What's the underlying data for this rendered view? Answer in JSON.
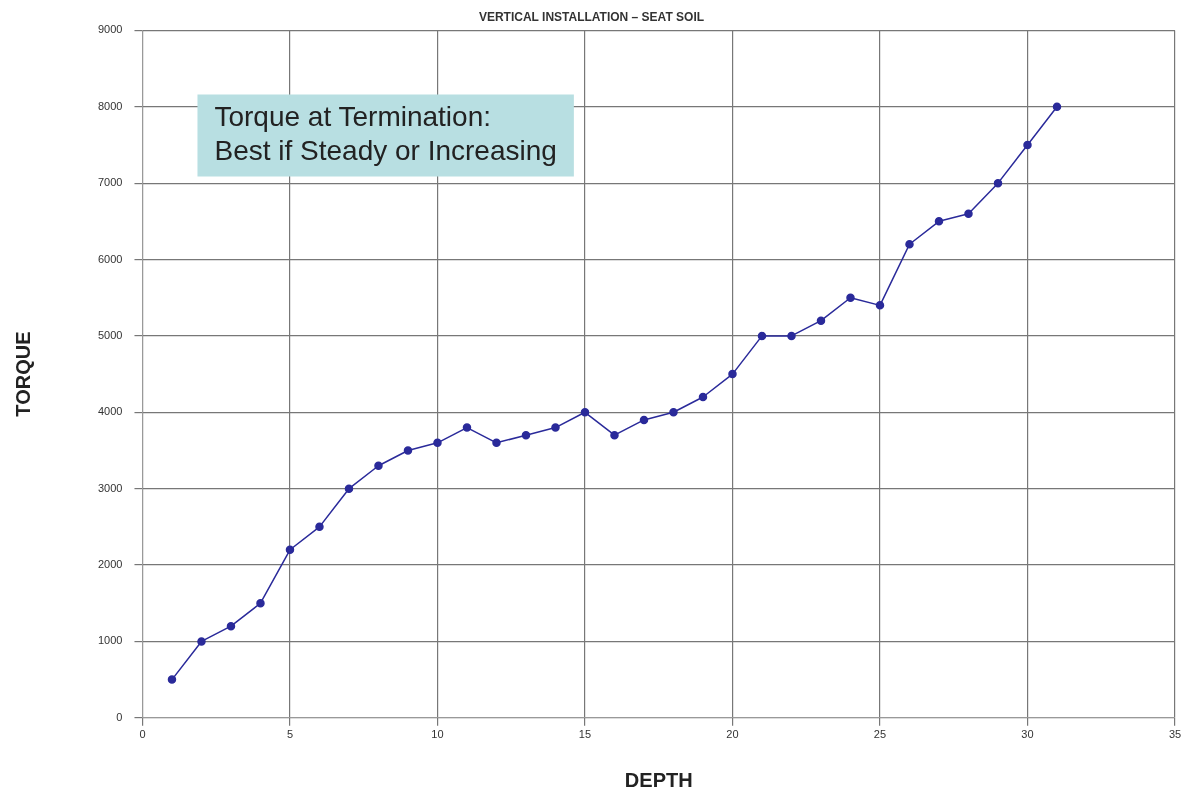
{
  "chart_data": {
    "type": "line",
    "title": "VERTICAL INSTALLATION – SEAT SOIL",
    "xlabel": "DEPTH",
    "ylabel": "TORQUE",
    "x": [
      1,
      2,
      3,
      4,
      5,
      6,
      7,
      8,
      9,
      10,
      11,
      12,
      13,
      14,
      15,
      16,
      17,
      18,
      19,
      20,
      21,
      22,
      23,
      24,
      25,
      26,
      27,
      28,
      29,
      30,
      31
    ],
    "series": [
      {
        "color": "#2a2a9a",
        "values": [
          500,
          1000,
          1200,
          1500,
          2200,
          2500,
          3000,
          3300,
          3500,
          3600,
          3800,
          3600,
          3700,
          3800,
          4000,
          3700,
          3900,
          4000,
          4200,
          4500,
          5000,
          5000,
          5200,
          5500,
          5400,
          6200,
          6500,
          6600,
          7000,
          7500,
          8000
        ]
      }
    ],
    "xlim": [
      0,
      35
    ],
    "xticks": [
      0,
      5,
      10,
      15,
      20,
      25,
      30,
      35
    ],
    "ylim": [
      0,
      9000
    ],
    "yticks": [
      0,
      1000,
      2000,
      3000,
      4000,
      5000,
      6000,
      7000,
      8000,
      9000
    ],
    "grid": true,
    "legend": false,
    "marker": "circle",
    "line_style": "solid",
    "annotations": [
      "Torque at Termination:\nBest if Steady or Increasing"
    ]
  }
}
